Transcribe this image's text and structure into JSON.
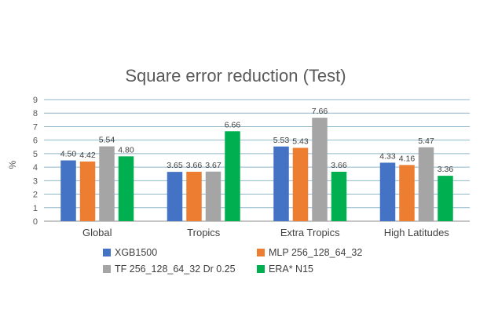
{
  "chart_data": {
    "type": "bar",
    "title": "Square error reduction (Test)",
    "ylabel": "%",
    "xlabel": "",
    "ylim": [
      0,
      9
    ],
    "yticks": [
      0,
      1,
      2,
      3,
      4,
      5,
      6,
      7,
      8,
      9
    ],
    "grid": true,
    "legend_position": "bottom",
    "categories": [
      "Global",
      "Tropics",
      "Extra Tropics",
      "High Latitudes"
    ],
    "series": [
      {
        "name": "XGB1500",
        "color": "#4472C4",
        "values": [
          4.5,
          3.65,
          5.53,
          4.33
        ]
      },
      {
        "name": "MLP 256_128_64_32",
        "color": "#ED7D31",
        "values": [
          4.42,
          3.66,
          5.43,
          4.16
        ]
      },
      {
        "name": "TF 256_128_64_32 Dr 0.25",
        "color": "#A5A5A5",
        "values": [
          5.54,
          3.67,
          7.66,
          5.47
        ]
      },
      {
        "name": "ERA* N15",
        "color": "#00B050",
        "values": [
          4.8,
          6.66,
          3.66,
          3.36
        ]
      }
    ],
    "gridline_color": "#8FB9C9"
  }
}
